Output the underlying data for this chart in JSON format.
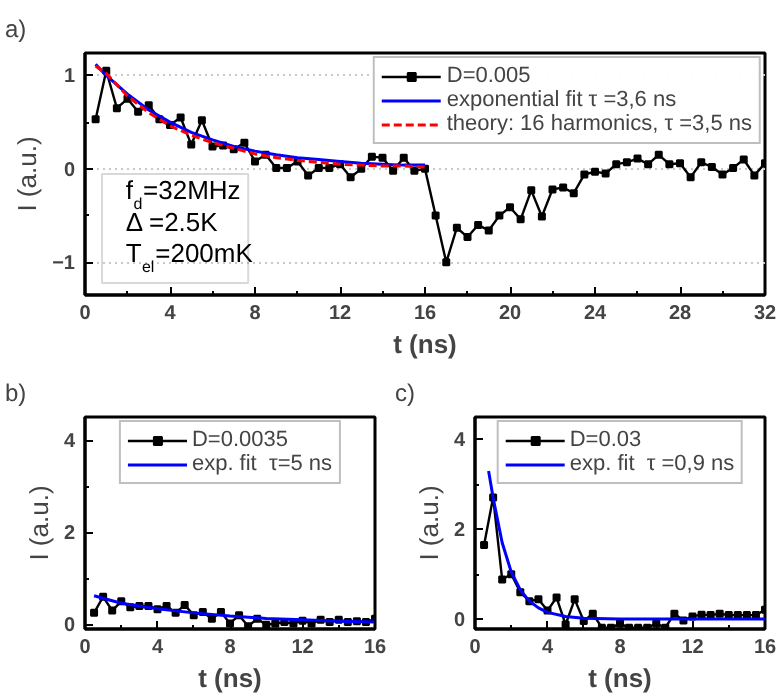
{
  "chart_data": [
    {
      "type": "line",
      "title": "a)",
      "xlabel": "t (ns)",
      "ylabel": "I (a.u.)",
      "xlim": [
        0,
        32
      ],
      "ylim": [
        -1.35,
        1.24
      ],
      "xticks": [
        0,
        4,
        8,
        12,
        16,
        20,
        24,
        28,
        32
      ],
      "yticks": [
        -1,
        0,
        1
      ],
      "grid": "y",
      "legend": "top right",
      "annotations": [
        "f$_{d}$=32MHz",
        "Δ =2.5K",
        "T$_{el}$=200mK"
      ],
      "series": [
        {
          "name": "D=0.005",
          "color": "#000000",
          "marker": "square",
          "line_style": "solid",
          "x": [
            0.5,
            1,
            1.5,
            2,
            2.5,
            3,
            3.5,
            4,
            4.5,
            5,
            5.5,
            6,
            6.5,
            7,
            7.5,
            8,
            8.5,
            9,
            9.5,
            10,
            10.5,
            11,
            11.5,
            12,
            12.5,
            13,
            13.5,
            14,
            14.5,
            15,
            15.5,
            16,
            16.5,
            17,
            17.5,
            18,
            18.5,
            19,
            19.5,
            20,
            20.5,
            21,
            21.5,
            22,
            22.5,
            23,
            23.5,
            24,
            24.5,
            25,
            25.5,
            26,
            26.5,
            27,
            27.5,
            28,
            28.5,
            29,
            29.5,
            30,
            30.5,
            31,
            31.5,
            32
          ],
          "values": [
            0.53,
            1.05,
            0.65,
            0.75,
            0.61,
            0.68,
            0.53,
            0.47,
            0.55,
            0.26,
            0.52,
            0.24,
            0.25,
            0.21,
            0.28,
            0.08,
            0.15,
            0.01,
            0.01,
            0.08,
            -0.07,
            0.01,
            0.01,
            0.05,
            -0.09,
            0.0,
            0.13,
            0.12,
            -0.02,
            0.12,
            -0.02,
            0.0,
            -0.5,
            -1.0,
            -0.63,
            -0.73,
            -0.6,
            -0.66,
            -0.5,
            -0.41,
            -0.54,
            -0.23,
            -0.51,
            -0.22,
            -0.2,
            -0.26,
            -0.06,
            -0.03,
            -0.05,
            0.05,
            0.07,
            0.11,
            0.05,
            0.15,
            0.05,
            0.06,
            -0.09,
            0.07,
            0.02,
            -0.06,
            0.01,
            0.1,
            -0.07,
            0.06
          ]
        },
        {
          "name": "exponential fit τ =3,6 ns",
          "color": "#0000ff",
          "marker": "none",
          "line_style": "solid",
          "x": [
            0.5,
            1,
            2,
            3,
            4,
            5,
            6,
            7,
            8,
            9,
            10,
            11,
            12,
            13,
            14,
            15,
            16
          ],
          "values": [
            1.12,
            1.0,
            0.8,
            0.63,
            0.5,
            0.39,
            0.31,
            0.24,
            0.19,
            0.15,
            0.12,
            0.1,
            0.08,
            0.06,
            0.05,
            0.04,
            0.04
          ]
        },
        {
          "name": "theory: 16 harmonics, τ =3,5 ns",
          "color": "#ff0000",
          "marker": "none",
          "line_style": "dashed",
          "x": [
            0.5,
            1,
            2,
            3,
            4,
            5,
            6,
            7,
            8,
            9,
            10,
            11,
            12,
            13,
            14,
            15,
            16
          ],
          "values": [
            1.1,
            1.02,
            0.78,
            0.6,
            0.46,
            0.36,
            0.28,
            0.22,
            0.16,
            0.12,
            0.09,
            0.07,
            0.05,
            0.04,
            0.03,
            0.03,
            0.02
          ]
        }
      ]
    },
    {
      "type": "line",
      "title": "b)",
      "xlabel": "t (ns)",
      "ylabel": "I (a.u.)",
      "xlim": [
        0,
        16
      ],
      "ylim": [
        -0.1,
        4.5
      ],
      "xticks": [
        0,
        4,
        8,
        12,
        16
      ],
      "yticks": [
        0,
        2,
        4
      ],
      "legend": "top",
      "series": [
        {
          "name": "D=0.0035",
          "color": "#000000",
          "marker": "square",
          "line_style": "solid",
          "x": [
            0.5,
            1,
            1.5,
            2,
            2.5,
            3,
            3.5,
            4,
            4.5,
            5,
            5.5,
            6,
            6.5,
            7,
            7.5,
            8,
            8.5,
            9,
            9.5,
            10,
            10.5,
            11,
            11.5,
            12,
            12.5,
            13,
            13.5,
            14,
            14.5,
            15,
            15.5,
            16
          ],
          "values": [
            0.25,
            0.6,
            0.3,
            0.5,
            0.37,
            0.4,
            0.4,
            0.33,
            0.4,
            0.25,
            0.42,
            0.2,
            0.27,
            0.12,
            0.27,
            0.02,
            0.2,
            -0.04,
            0.12,
            -0.01,
            0.02,
            0.05,
            0.02,
            0.08,
            0.02,
            0.1,
            0.05,
            0.1,
            0.05,
            0.07,
            0.05,
            0.12
          ]
        },
        {
          "name": "exp. fit  τ=5 ns",
          "color": "#0000ff",
          "marker": "none",
          "line_style": "solid",
          "x": [
            0.5,
            2,
            4,
            6,
            8,
            10,
            12,
            14,
            16
          ],
          "values": [
            0.62,
            0.46,
            0.34,
            0.25,
            0.18,
            0.13,
            0.1,
            0.07,
            0.05
          ]
        }
      ]
    },
    {
      "type": "line",
      "title": "c)",
      "xlabel": "t (ns)",
      "ylabel": "I (a.u.)",
      "xlim": [
        0,
        16
      ],
      "ylim": [
        -0.22,
        4.5
      ],
      "xticks": [
        0,
        4,
        8,
        12,
        16
      ],
      "yticks": [
        0,
        2,
        4
      ],
      "legend": "top",
      "series": [
        {
          "name": "D=0.03",
          "color": "#000000",
          "marker": "square",
          "line_style": "solid",
          "x": [
            0.5,
            1,
            1.5,
            2,
            2.5,
            3,
            3.5,
            4,
            4.5,
            5,
            5.5,
            6,
            6.5,
            7,
            7.5,
            8,
            8.5,
            9,
            9.5,
            10,
            10.5,
            11,
            11.5,
            12,
            12.5,
            13,
            13.5,
            14,
            14.5,
            15,
            15.5,
            16
          ],
          "values": [
            1.65,
            2.71,
            0.88,
            1.0,
            0.6,
            0.4,
            0.44,
            0.19,
            0.48,
            -0.12,
            0.44,
            -0.04,
            0.12,
            -0.19,
            -0.19,
            -0.1,
            -0.19,
            -0.19,
            -0.19,
            -0.1,
            -0.19,
            0.12,
            -0.03,
            0.06,
            0.1,
            0.09,
            0.12,
            0.09,
            0.09,
            0.09,
            0.09,
            0.21
          ]
        },
        {
          "name": "exp. fit  τ =0,9 ns",
          "color": "#0000ff",
          "marker": "none",
          "line_style": "solid",
          "x": [
            0.75,
            1,
            1.5,
            2,
            2.5,
            3,
            3.5,
            4,
            5,
            6,
            8,
            16
          ],
          "values": [
            3.3,
            2.7,
            1.7,
            1.05,
            0.65,
            0.4,
            0.25,
            0.15,
            0.06,
            0.02,
            0.0,
            0.0
          ]
        }
      ]
    }
  ]
}
